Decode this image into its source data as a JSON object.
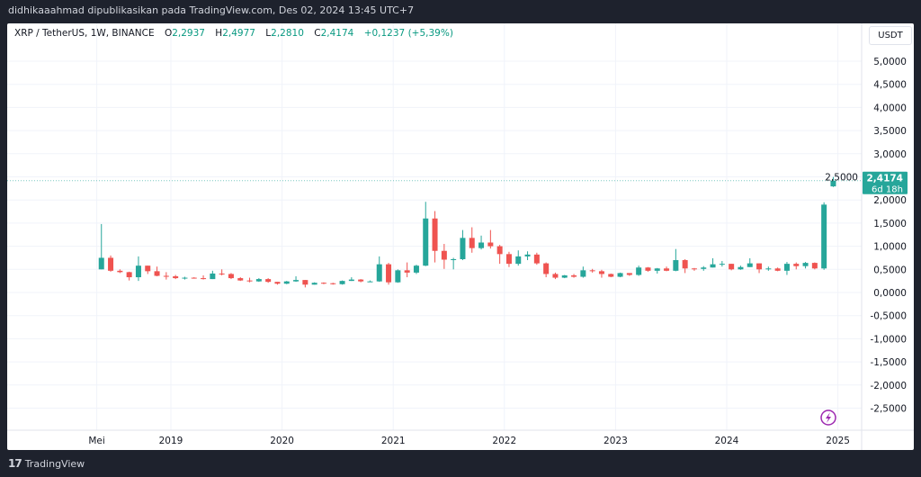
{
  "header": {
    "publish_text": "didhikaaahmad dipublikasikan pada TradingView.com, Des 02, 2024 13:45 UTC+7"
  },
  "legend": {
    "symbol": "XRP / TetherUS, 1W, BINANCE",
    "o_label": "O",
    "o": "2,2937",
    "h_label": "H",
    "h": "2,4977",
    "l_label": "L",
    "l": "2,2810",
    "c_label": "C",
    "c": "2,4174",
    "change": "+0,1237 (+5,39%)"
  },
  "currency_button": "USDT",
  "last_price": {
    "value": "2,4174",
    "countdown": "6d 18h"
  },
  "footer": {
    "brand": "TradingView",
    "logo_text": "17"
  },
  "colors": {
    "up": "#26a69a",
    "down": "#ef5350",
    "tag": "#26a69a",
    "flash": "#9c27b0"
  },
  "icons": {
    "flash": "lightning-icon",
    "logo": "tradingview-logo"
  },
  "chart_data": {
    "type": "candlestick",
    "title": "XRP / TetherUS, 1W, BINANCE",
    "ylim": [
      -2.9,
      5.5
    ],
    "grid": true,
    "y_ticks": [
      "5,0000",
      "4,5000",
      "4,0000",
      "3,5000",
      "3,0000",
      "2,5000",
      "2,0000",
      "1,5000",
      "1,0000",
      "0,5000",
      "0,0000",
      "-0,5000",
      "-1,0000",
      "-1,5000",
      "-2,0000",
      "-2,5000"
    ],
    "y_tick_values": [
      5,
      4.5,
      4,
      3.5,
      3,
      2.5,
      2,
      1.5,
      1,
      0.5,
      0,
      -0.5,
      -1,
      -1.5,
      -2,
      -2.5
    ],
    "x_ticks": [
      "Mei",
      "2019",
      "2020",
      "2021",
      "2022",
      "2023",
      "2024",
      "2025"
    ],
    "x_tick_dates": [
      "2018-05",
      "2019-01",
      "2020-01",
      "2021-01",
      "2022-01",
      "2023-01",
      "2024-01",
      "2025-01"
    ],
    "last_price": 2.4174,
    "start_month": "2018-05",
    "ohlc_approx_monthly": [
      [
        0.5,
        1.48,
        0.5,
        0.75
      ],
      [
        0.75,
        0.8,
        0.45,
        0.47
      ],
      [
        0.47,
        0.5,
        0.42,
        0.44
      ],
      [
        0.44,
        0.45,
        0.26,
        0.33
      ],
      [
        0.33,
        0.78,
        0.25,
        0.58
      ],
      [
        0.58,
        0.58,
        0.4,
        0.46
      ],
      [
        0.46,
        0.56,
        0.35,
        0.36
      ],
      [
        0.36,
        0.44,
        0.28,
        0.35
      ],
      [
        0.35,
        0.38,
        0.29,
        0.31
      ],
      [
        0.31,
        0.34,
        0.28,
        0.32
      ],
      [
        0.32,
        0.33,
        0.3,
        0.31
      ],
      [
        0.31,
        0.37,
        0.28,
        0.29
      ],
      [
        0.29,
        0.47,
        0.29,
        0.41
      ],
      [
        0.41,
        0.5,
        0.37,
        0.4
      ],
      [
        0.4,
        0.42,
        0.29,
        0.31
      ],
      [
        0.31,
        0.33,
        0.25,
        0.26
      ],
      [
        0.26,
        0.32,
        0.22,
        0.24
      ],
      [
        0.24,
        0.31,
        0.23,
        0.29
      ],
      [
        0.29,
        0.31,
        0.21,
        0.23
      ],
      [
        0.23,
        0.23,
        0.17,
        0.19
      ],
      [
        0.19,
        0.25,
        0.18,
        0.24
      ],
      [
        0.24,
        0.35,
        0.23,
        0.27
      ],
      [
        0.27,
        0.27,
        0.11,
        0.17
      ],
      [
        0.17,
        0.22,
        0.17,
        0.21
      ],
      [
        0.21,
        0.22,
        0.18,
        0.2
      ],
      [
        0.2,
        0.21,
        0.17,
        0.18
      ],
      [
        0.18,
        0.26,
        0.17,
        0.25
      ],
      [
        0.25,
        0.33,
        0.25,
        0.28
      ],
      [
        0.28,
        0.29,
        0.22,
        0.24
      ],
      [
        0.24,
        0.26,
        0.23,
        0.24
      ],
      [
        0.24,
        0.78,
        0.23,
        0.61
      ],
      [
        0.61,
        0.64,
        0.17,
        0.22
      ],
      [
        0.22,
        0.5,
        0.21,
        0.48
      ],
      [
        0.48,
        0.65,
        0.33,
        0.43
      ],
      [
        0.43,
        0.6,
        0.4,
        0.58
      ],
      [
        0.58,
        1.96,
        0.57,
        1.6
      ],
      [
        1.6,
        1.76,
        0.65,
        0.9
      ],
      [
        0.9,
        1.05,
        0.51,
        0.71
      ],
      [
        0.71,
        0.75,
        0.5,
        0.72
      ],
      [
        0.72,
        1.35,
        0.7,
        1.18
      ],
      [
        1.18,
        1.41,
        0.86,
        0.96
      ],
      [
        0.96,
        1.23,
        0.93,
        1.08
      ],
      [
        1.08,
        1.35,
        0.95,
        1.0
      ],
      [
        1.0,
        1.03,
        0.62,
        0.83
      ],
      [
        0.83,
        0.88,
        0.55,
        0.62
      ],
      [
        0.62,
        0.91,
        0.58,
        0.78
      ],
      [
        0.78,
        0.89,
        0.7,
        0.82
      ],
      [
        0.82,
        0.86,
        0.6,
        0.63
      ],
      [
        0.63,
        0.65,
        0.33,
        0.4
      ],
      [
        0.4,
        0.43,
        0.29,
        0.32
      ],
      [
        0.32,
        0.38,
        0.31,
        0.37
      ],
      [
        0.37,
        0.4,
        0.32,
        0.34
      ],
      [
        0.34,
        0.56,
        0.32,
        0.48
      ],
      [
        0.48,
        0.51,
        0.43,
        0.46
      ],
      [
        0.46,
        0.49,
        0.32,
        0.4
      ],
      [
        0.4,
        0.41,
        0.33,
        0.34
      ],
      [
        0.34,
        0.43,
        0.33,
        0.42
      ],
      [
        0.42,
        0.42,
        0.36,
        0.38
      ],
      [
        0.38,
        0.58,
        0.36,
        0.54
      ],
      [
        0.54,
        0.55,
        0.45,
        0.47
      ],
      [
        0.47,
        0.53,
        0.41,
        0.52
      ],
      [
        0.52,
        0.56,
        0.46,
        0.47
      ],
      [
        0.47,
        0.94,
        0.46,
        0.7
      ],
      [
        0.7,
        0.72,
        0.42,
        0.52
      ],
      [
        0.52,
        0.53,
        0.47,
        0.51
      ],
      [
        0.51,
        0.57,
        0.47,
        0.54
      ],
      [
        0.54,
        0.74,
        0.54,
        0.61
      ],
      [
        0.61,
        0.68,
        0.56,
        0.62
      ],
      [
        0.62,
        0.62,
        0.48,
        0.5
      ],
      [
        0.5,
        0.58,
        0.49,
        0.55
      ],
      [
        0.55,
        0.74,
        0.55,
        0.63
      ],
      [
        0.63,
        0.63,
        0.42,
        0.5
      ],
      [
        0.5,
        0.56,
        0.47,
        0.52
      ],
      [
        0.52,
        0.54,
        0.46,
        0.47
      ],
      [
        0.47,
        0.66,
        0.38,
        0.62
      ],
      [
        0.62,
        0.65,
        0.5,
        0.57
      ],
      [
        0.57,
        0.66,
        0.52,
        0.64
      ],
      [
        0.64,
        0.65,
        0.5,
        0.52
      ],
      [
        0.52,
        1.95,
        0.49,
        1.9
      ],
      [
        2.2937,
        2.4977,
        2.281,
        2.4174
      ]
    ]
  }
}
